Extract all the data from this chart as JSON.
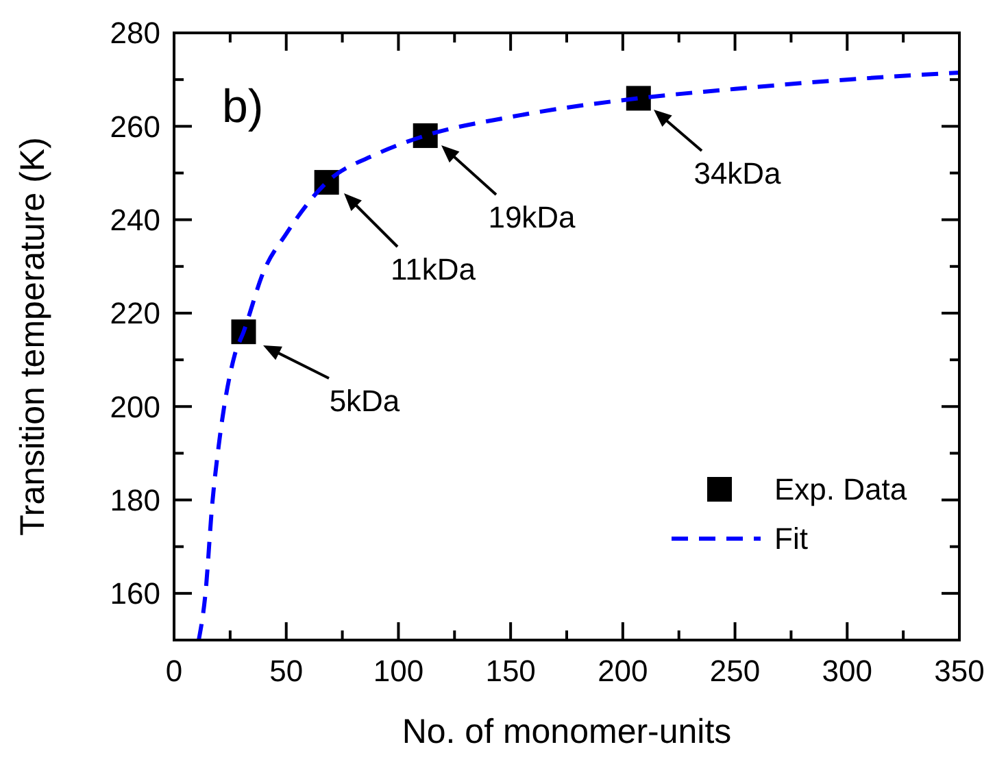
{
  "chart_data": {
    "type": "scatter",
    "xlabel": "No. of monomer-units",
    "ylabel": "Transition temperature (K)",
    "xlim": [
      0,
      350
    ],
    "ylim": [
      150,
      280
    ],
    "xticks": [
      0,
      {
        "value": 25,
        "label": null
      },
      50,
      {
        "value": 75,
        "label": null
      },
      100,
      {
        "value": 125,
        "label": null
      },
      150,
      {
        "value": 175,
        "label": null
      },
      200,
      {
        "value": 225,
        "label": null
      },
      250,
      {
        "value": 275,
        "label": null
      },
      300,
      {
        "value": 325,
        "label": null
      },
      350
    ],
    "yticks": [
      {
        "value": 150,
        "label": null
      },
      160,
      {
        "value": 170,
        "label": null
      },
      180,
      {
        "value": 190,
        "label": null
      },
      200,
      {
        "value": 210,
        "label": null
      },
      220,
      {
        "value": 230,
        "label": null
      },
      240,
      {
        "value": 250,
        "label": null
      },
      260,
      {
        "value": 270,
        "label": null
      },
      280
    ],
    "grid": false,
    "legend": "bottom right",
    "series": [
      {
        "name": "Exp. Data",
        "color": "#000000",
        "marker": "square",
        "x": [
          31,
          68,
          112,
          207
        ],
        "values": [
          216,
          248,
          258,
          266
        ]
      },
      {
        "name": "Fit",
        "type": "line",
        "color": "#0000ff",
        "marker": "none",
        "line_style": "dashed",
        "x": [
          11,
          14,
          17,
          20,
          27,
          31,
          40,
          50,
          68,
          90,
          112,
          150,
          207,
          250,
          300,
          350
        ],
        "values": [
          150,
          160,
          179,
          192,
          211,
          216,
          229,
          237,
          248,
          254,
          258,
          262,
          266,
          268,
          270,
          271.5
        ]
      }
    ],
    "annotations": [
      "b)",
      "5kDa",
      "11kDa",
      "19kDa",
      "34kDa"
    ]
  }
}
